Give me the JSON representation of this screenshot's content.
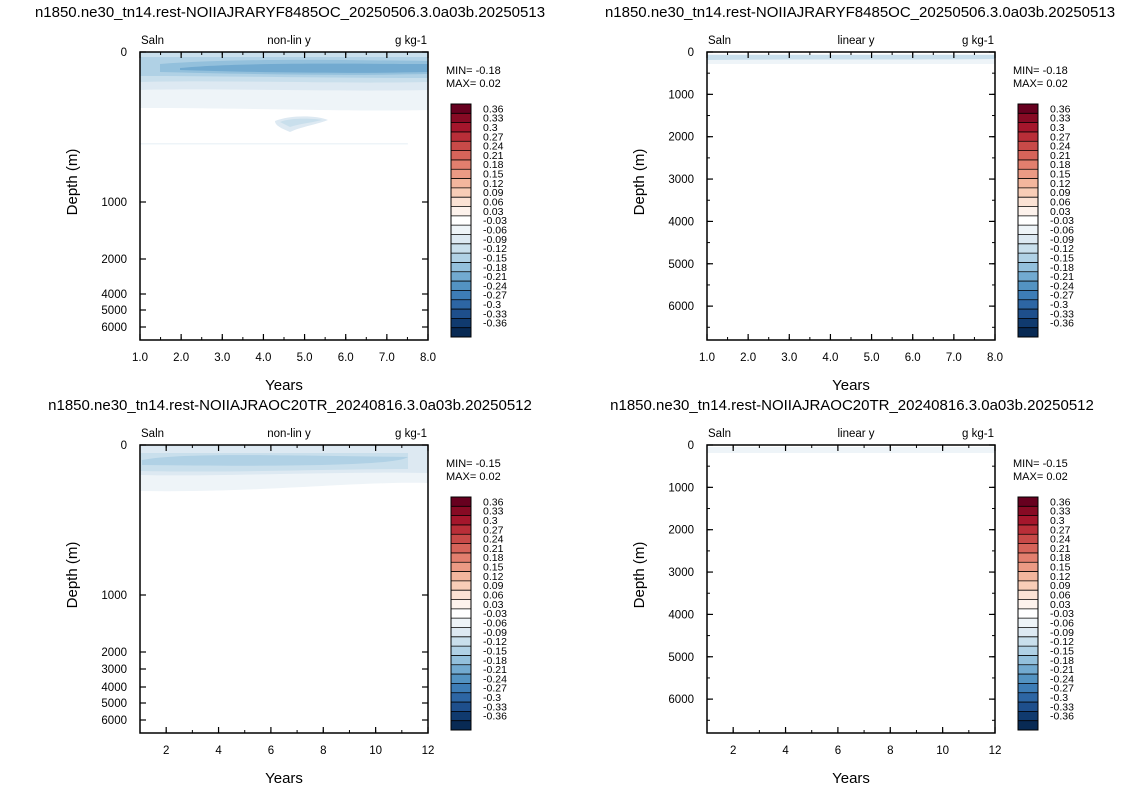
{
  "colorbar": {
    "labels": [
      "0.36",
      "0.33",
      "0.3",
      "0.27",
      "0.24",
      "0.21",
      "0.18",
      "0.15",
      "0.12",
      "0.09",
      "0.06",
      "0.03",
      "-0.03",
      "-0.06",
      "-0.09",
      "-0.12",
      "-0.15",
      "-0.18",
      "-0.21",
      "-0.24",
      "-0.27",
      "-0.3",
      "-0.33",
      "-0.36"
    ],
    "colors": [
      "#67001f",
      "#870a24",
      "#a5162c",
      "#b92e38",
      "#c84a48",
      "#d6645a",
      "#e27f6e",
      "#eb9a84",
      "#f3b69d",
      "#f8cdb7",
      "#fbe2d4",
      "#fdf2ec",
      "#ffffff",
      "#eef4f8",
      "#dde9f2",
      "#c9dfec",
      "#b0d1e5",
      "#93c0dc",
      "#72aad0",
      "#5393c2",
      "#3d7db6",
      "#2d66a4",
      "#1e4f8c",
      "#103a6e",
      "#082a54"
    ]
  },
  "chart_data": [
    {
      "type": "heatmap",
      "title": "n1850.ne30_tn14.rest-NOIIAJRARYF8485OC_20250506.3.0a03b.20250513",
      "left_label": "Saln",
      "center_label": "non-lin y",
      "right_label": "g kg-1",
      "xlabel": "Years",
      "ylabel": "Depth (m)",
      "xlim": [
        1,
        8
      ],
      "xticks": [
        "1.0",
        "2.0",
        "3.0",
        "4.0",
        "5.0",
        "6.0",
        "7.0",
        "8.0"
      ],
      "ylim": [
        0,
        6500
      ],
      "y_scale": "non-linear",
      "yticks": [
        "0",
        "1000",
        "2000",
        "4000",
        "5000",
        "6000"
      ],
      "min_text": "MIN= -0.18",
      "max_text": "MAX=  0.02",
      "field_min": -0.18,
      "field_max": 0.02
    },
    {
      "type": "heatmap",
      "title": "n1850.ne30_tn14.rest-NOIIAJRARYF8485OC_20250506.3.0a03b.20250513",
      "left_label": "Saln",
      "center_label": "linear y",
      "right_label": "g kg-1",
      "xlabel": "Years",
      "ylabel": "Depth (m)",
      "xlim": [
        1,
        8
      ],
      "xticks": [
        "1.0",
        "2.0",
        "3.0",
        "4.0",
        "5.0",
        "6.0",
        "7.0",
        "8.0"
      ],
      "ylim": [
        0,
        6800
      ],
      "y_scale": "linear",
      "yticks": [
        "0",
        "1000",
        "2000",
        "3000",
        "4000",
        "5000",
        "6000"
      ],
      "min_text": "MIN= -0.18",
      "max_text": "MAX=  0.02",
      "field_min": -0.18,
      "field_max": 0.02
    },
    {
      "type": "heatmap",
      "title": "n1850.ne30_tn14.rest-NOIIAJRAOC20TR_20240816.3.0a03b.20250512",
      "left_label": "Saln",
      "center_label": "non-lin y",
      "right_label": "g kg-1",
      "xlabel": "Years",
      "ylabel": "Depth (m)",
      "xlim": [
        1,
        12
      ],
      "xticks": [
        "2",
        "4",
        "6",
        "8",
        "10",
        "12"
      ],
      "ylim": [
        0,
        6500
      ],
      "y_scale": "non-linear",
      "yticks": [
        "0",
        "1000",
        "2000",
        "3000",
        "4000",
        "5000",
        "6000"
      ],
      "min_text": "MIN= -0.15",
      "max_text": "MAX=  0.02",
      "field_min": -0.15,
      "field_max": 0.02
    },
    {
      "type": "heatmap",
      "title": "n1850.ne30_tn14.rest-NOIIAJRAOC20TR_20240816.3.0a03b.20250512",
      "left_label": "Saln",
      "center_label": "linear y",
      "right_label": "g kg-1",
      "xlabel": "Years",
      "ylabel": "Depth (m)",
      "xlim": [
        1,
        12
      ],
      "xticks": [
        "2",
        "4",
        "6",
        "8",
        "10",
        "12"
      ],
      "ylim": [
        0,
        6800
      ],
      "y_scale": "linear",
      "yticks": [
        "0",
        "1000",
        "2000",
        "3000",
        "4000",
        "5000",
        "6000"
      ],
      "min_text": "MIN= -0.15",
      "max_text": "MAX=  0.02",
      "field_min": -0.15,
      "field_max": 0.02
    }
  ]
}
